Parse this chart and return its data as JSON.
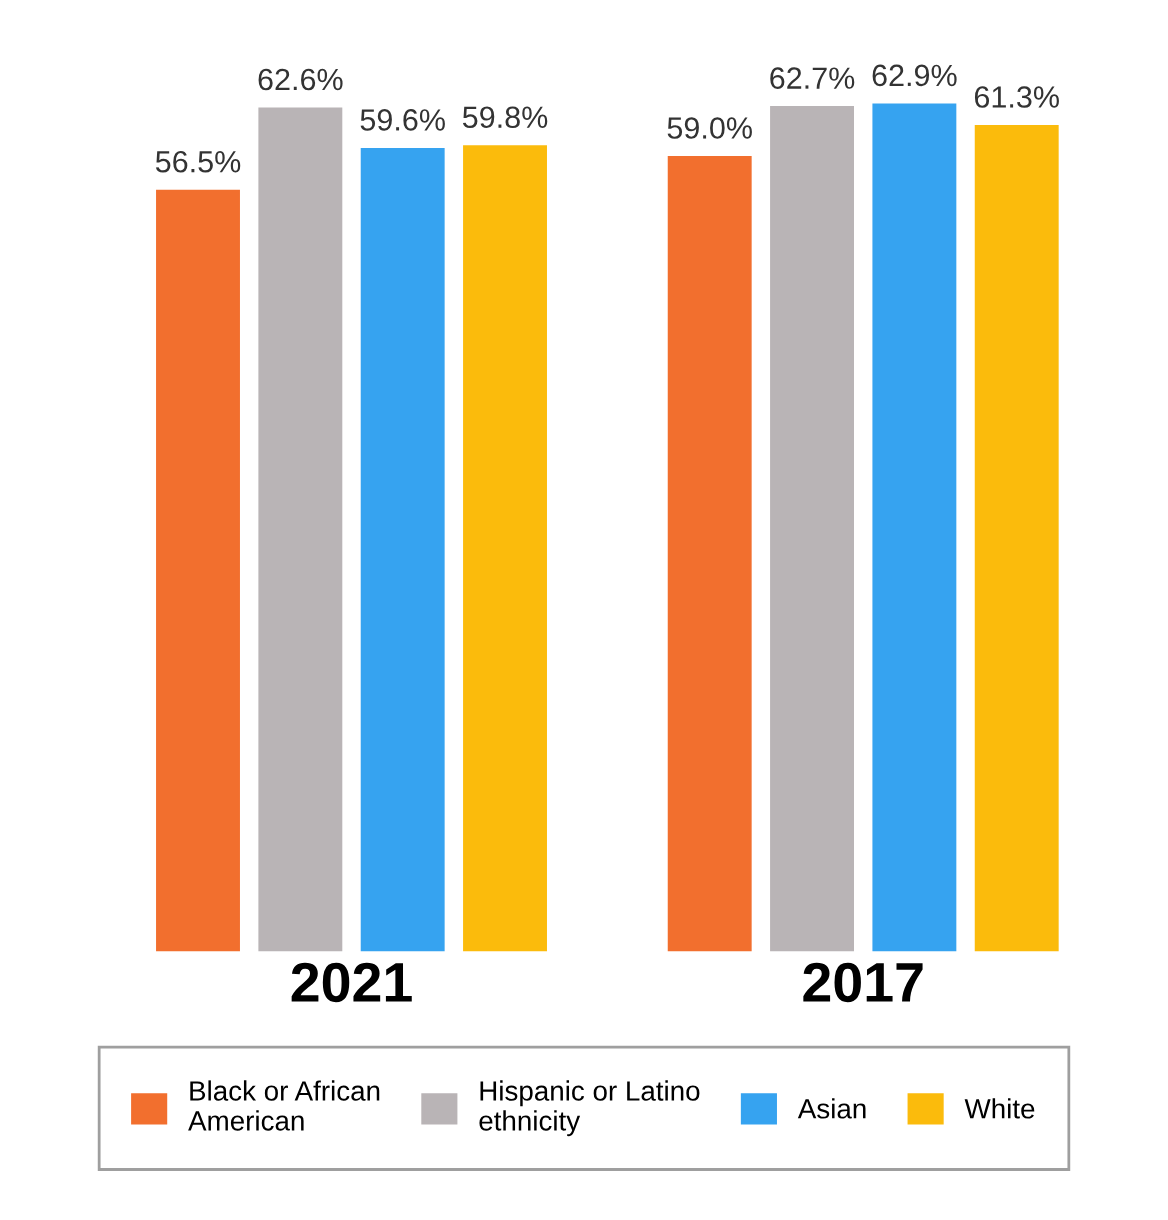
{
  "chart_data": {
    "type": "bar",
    "categories": [
      "2021",
      "2017"
    ],
    "series": [
      {
        "name": "Black or African\nAmerican",
        "color": "#f26f2e",
        "values": [
          56.5,
          59.0
        ],
        "value_labels": [
          "56.5%",
          "59.0%"
        ]
      },
      {
        "name": "Hispanic or Latino\nethnicity",
        "color": "#b9b4b6",
        "values": [
          62.6,
          62.7
        ],
        "value_labels": [
          "62.6%",
          "62.7%"
        ]
      },
      {
        "name": "Asian",
        "color": "#36a3f0",
        "values": [
          59.6,
          62.9
        ],
        "value_labels": [
          "59.6%",
          "62.9%"
        ]
      },
      {
        "name": "White",
        "color": "#fbbb0c",
        "values": [
          59.8,
          61.3
        ],
        "value_labels": [
          "59.8%",
          "61.3%"
        ]
      }
    ],
    "legend": "bottom",
    "grid": false,
    "tick_labels": "x"
  }
}
